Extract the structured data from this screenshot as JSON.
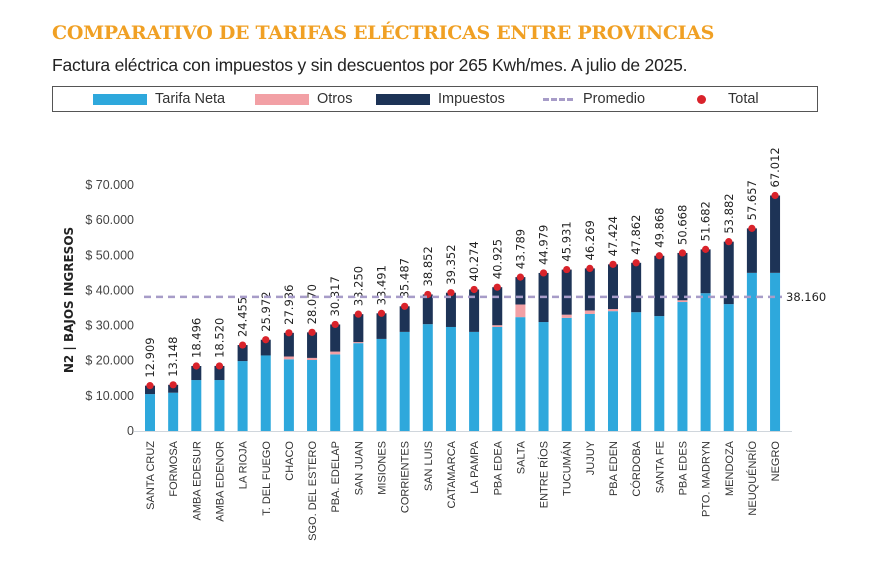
{
  "header": {
    "title": "COMPARATIVO DE TARIFAS ELÉCTRICAS ENTRE PROVINCIAS",
    "subtitle": "Factura eléctrica con impuestos y sin descuentos por 265 Kwh/mes. A julio de 2025."
  },
  "legend": {
    "items": [
      {
        "label": "Tarifa Neta",
        "type": "swatch",
        "color": "#2ea8dc"
      },
      {
        "label": "Otros",
        "type": "swatch",
        "color": "#f2a0a5"
      },
      {
        "label": "Impuestos",
        "type": "swatch",
        "color": "#1d3356"
      },
      {
        "label": "Promedio",
        "type": "dash",
        "color": "#a79cc8"
      },
      {
        "label": "Total",
        "type": "dot",
        "color": "#d9232b"
      }
    ]
  },
  "chart_data": {
    "type": "bar",
    "stacked": true,
    "title": "COMPARATIVO DE TARIFAS ELÉCTRICAS ENTRE PROVINCIAS",
    "subtitle": "Factura eléctrica con impuestos y sin descuentos por 265 Kwh/mes. A julio de 2025.",
    "xlabel": "",
    "ylabel": "N2 | BAJOS INGRESOS",
    "ylim": [
      0,
      70000
    ],
    "yticks": [
      0,
      10000,
      20000,
      30000,
      40000,
      50000,
      60000,
      70000
    ],
    "ytick_labels": [
      "0",
      "$ 10.000",
      "$ 20.000",
      "$ 30.000",
      "$ 40.000",
      "$ 50.000",
      "$ 60.000",
      "$ 70.000"
    ],
    "grid": false,
    "legend_position": "top",
    "categories": [
      "SANTA CRUZ",
      "FORMOSA",
      "AMBA EDESUR",
      "AMBA EDENOR",
      "LA RIOJA",
      "T. DEL FUEGO",
      "CHACO",
      "SGO. DEL ESTERO",
      "PBA. EDELAP",
      "SAN JUAN",
      "MISIONES",
      "CORRIENTES",
      "SAN LUIS",
      "CATAMARCA",
      "LA PAMPA",
      "PBA EDEA",
      "SALTA",
      "ENTRE RÍOS",
      "TUCUMÁN",
      "JUJUY",
      "PBA EDEN",
      "CÓRDOBA",
      "SANTA FE",
      "PBA EDES",
      "PTO. MADRYN",
      "MENDOZA",
      "NEUQUÉNRÍO",
      "NEGRO"
    ],
    "series": [
      {
        "name": "Tarifa Neta",
        "color": "#2ea8dc",
        "values": [
          10500,
          10900,
          14500,
          14500,
          19900,
          21500,
          20400,
          20200,
          21800,
          25000,
          26200,
          28200,
          30400,
          29600,
          28200,
          29600,
          32400,
          31000,
          32200,
          33300,
          34100,
          33800,
          32700,
          36700,
          39200,
          36100,
          45000,
          45000
        ]
      },
      {
        "name": "Otros",
        "color": "#f2a0a5",
        "values": [
          0,
          0,
          0,
          0,
          0,
          0,
          800,
          600,
          800,
          300,
          0,
          0,
          0,
          0,
          0,
          500,
          3600,
          0,
          900,
          1000,
          600,
          0,
          0,
          500,
          0,
          0,
          0,
          0
        ]
      },
      {
        "name": "Impuestos",
        "color": "#1d3356",
        "values": [
          2409,
          2248,
          3996,
          4020,
          4555,
          4472,
          6736,
          7270,
          7717,
          7950,
          7291,
          7287,
          8452,
          9752,
          12074,
          10825,
          7789,
          13979,
          12831,
          11969,
          12724,
          14062,
          17168,
          13468,
          12482,
          17782,
          12657,
          22012
        ]
      },
      {
        "name": "Total",
        "color": "#d9232b",
        "values": [
          12909,
          13148,
          18496,
          18520,
          24455,
          25972,
          27936,
          28070,
          30317,
          33250,
          33491,
          35487,
          38852,
          39352,
          40274,
          40925,
          43789,
          44979,
          45931,
          46269,
          47424,
          47862,
          49868,
          50668,
          51682,
          53882,
          57657,
          67012
        ]
      }
    ],
    "data_labels": [
      "12.909",
      "13.148",
      "18.496",
      "18.520",
      "24.455",
      "25.972",
      "27.936",
      "28.070",
      "30.317",
      "33.250",
      "33.491",
      "35.487",
      "38.852",
      "39.352",
      "40.274",
      "40.925",
      "43.789",
      "44.979",
      "45.931",
      "46.269",
      "47.424",
      "47.862",
      "49.868",
      "50.668",
      "51.682",
      "53.882",
      "57.657",
      "67.012"
    ],
    "average": {
      "name": "Promedio",
      "value": 38160,
      "label": "38.160",
      "color": "#a79cc8"
    }
  }
}
